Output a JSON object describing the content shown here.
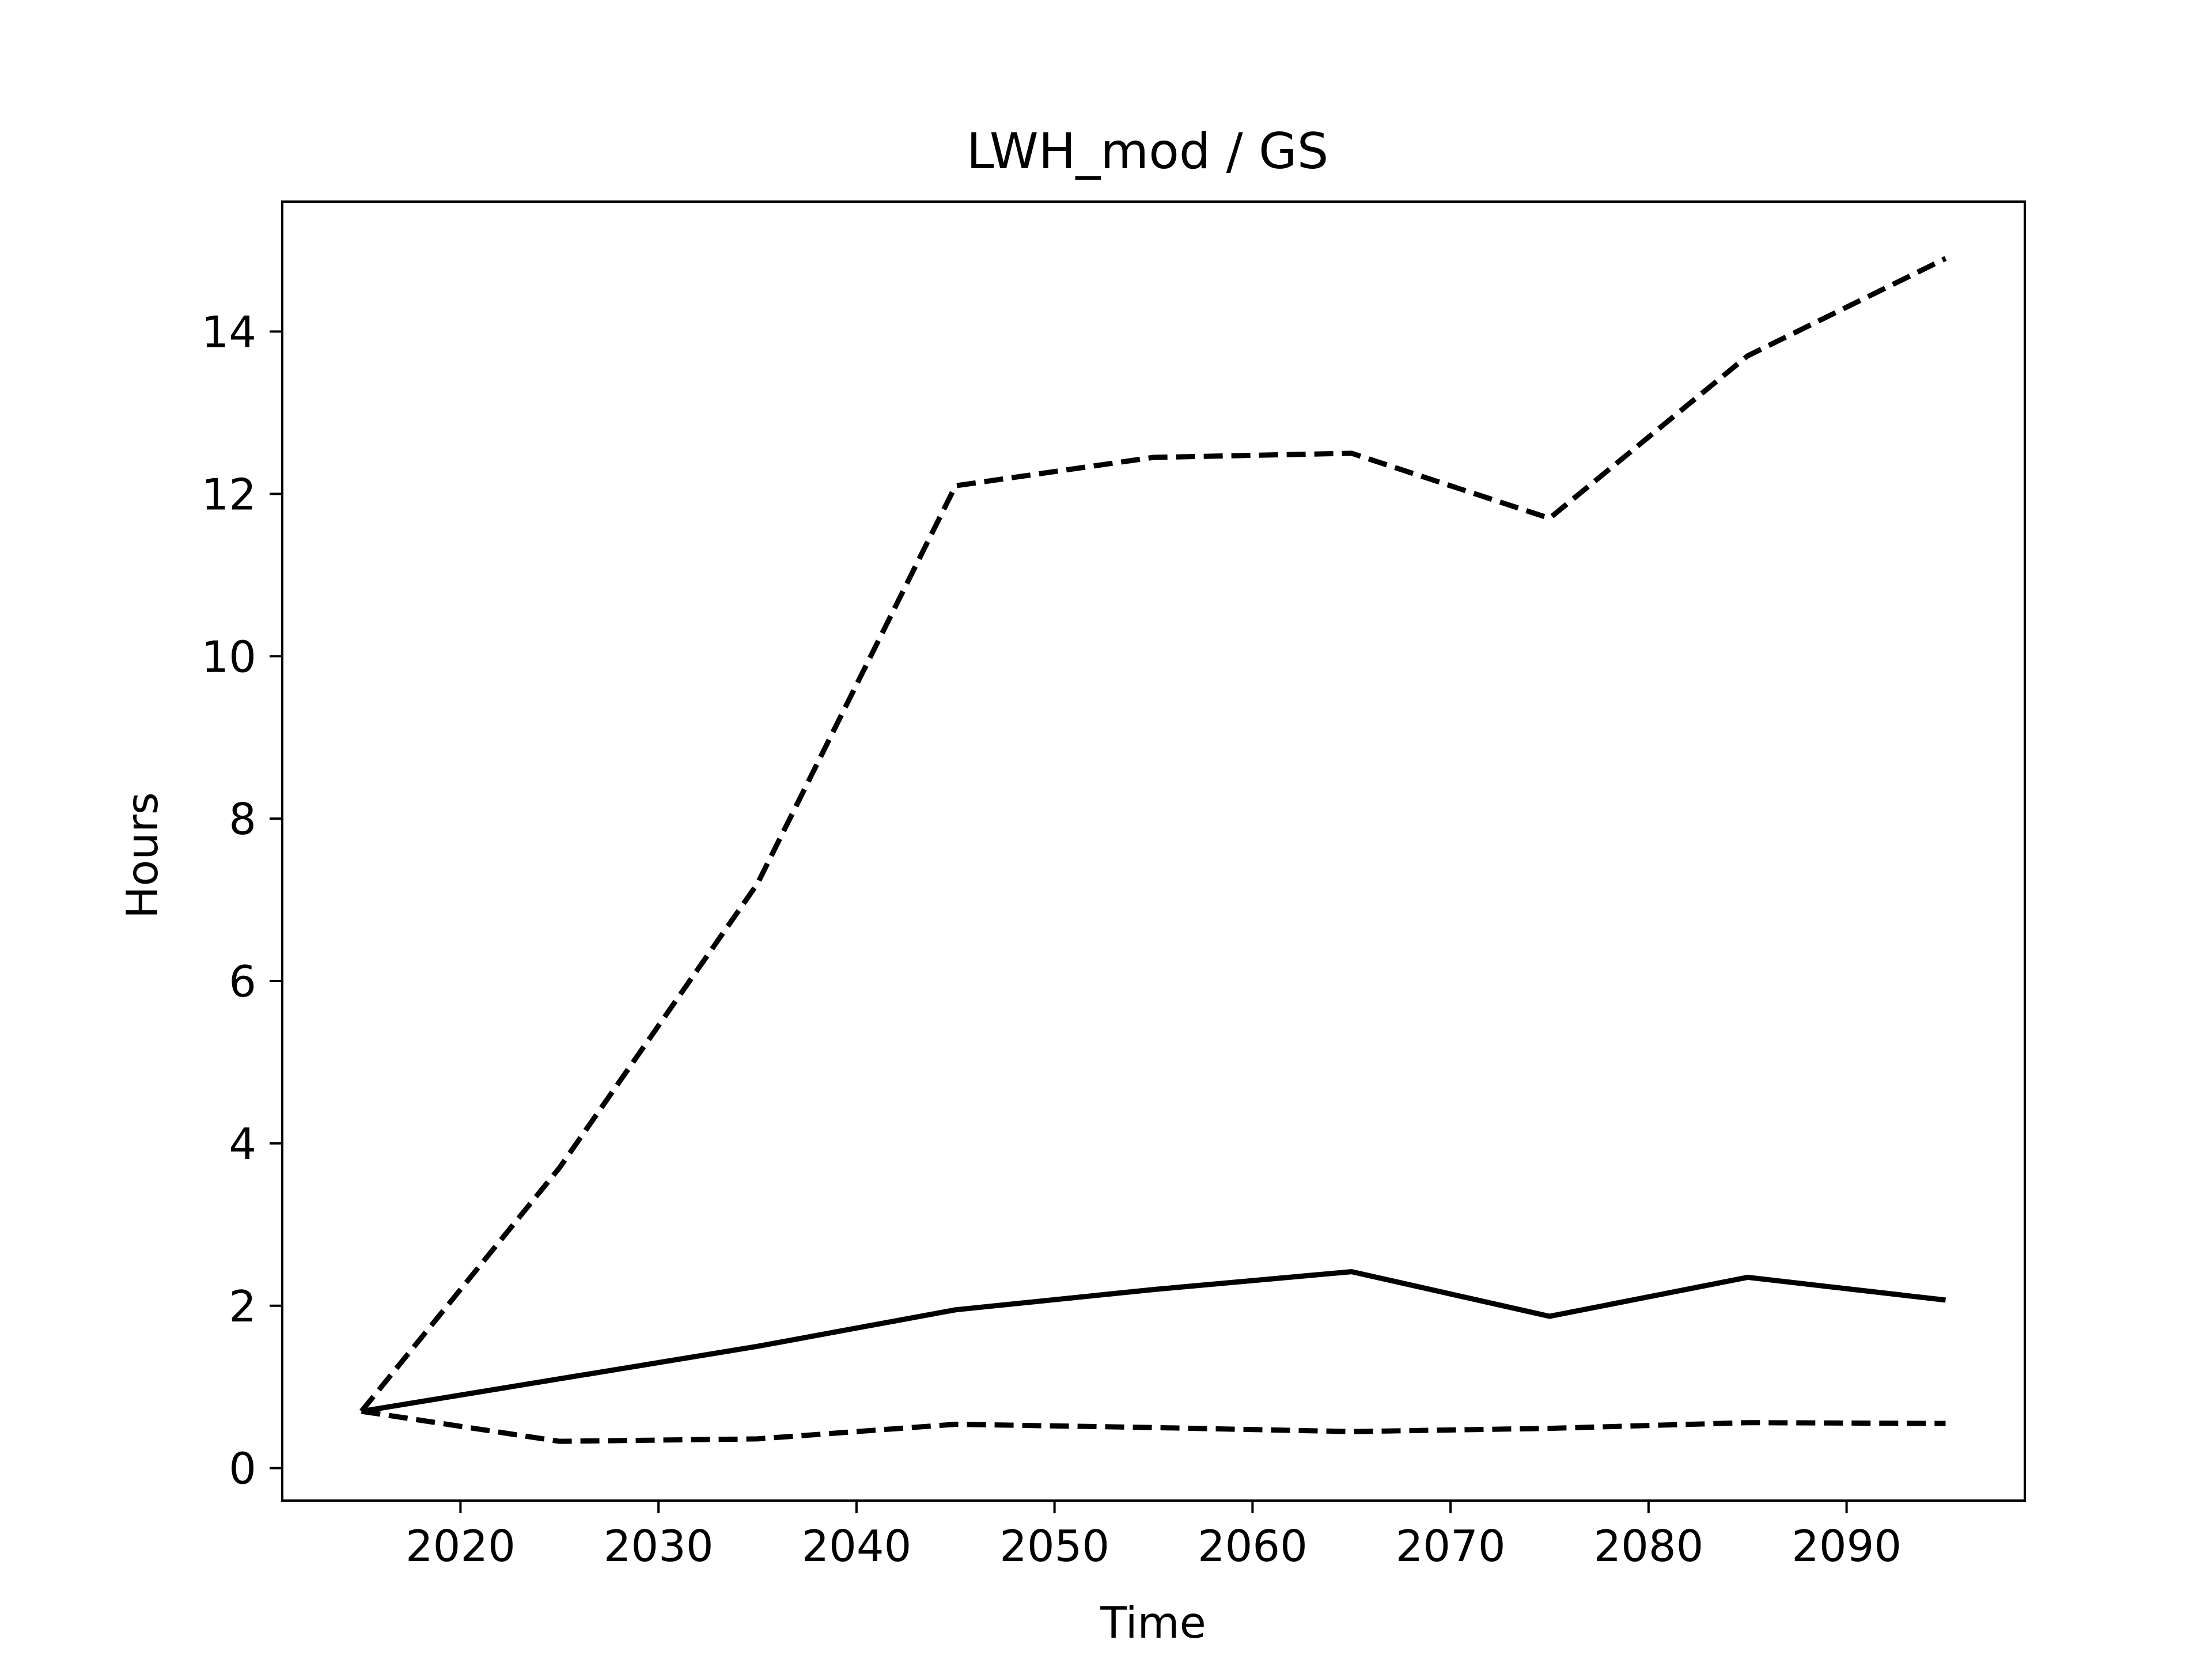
{
  "chart_data": {
    "type": "line",
    "title": "LWH_mod / GS",
    "xlabel": "Time",
    "ylabel": "Hours",
    "xlim": [
      2011,
      2099
    ],
    "ylim": [
      -0.4,
      15.6
    ],
    "xticks": [
      2020,
      2030,
      2040,
      2050,
      2060,
      2070,
      2080,
      2090
    ],
    "yticks": [
      0,
      2,
      4,
      6,
      8,
      10,
      12,
      14
    ],
    "grid": false,
    "x": [
      2015,
      2025,
      2035,
      2045,
      2055,
      2065,
      2075,
      2085,
      2095
    ],
    "series": [
      {
        "style": "dashed",
        "color": "#000000",
        "values": [
          0.7,
          3.7,
          7.2,
          12.1,
          12.45,
          12.5,
          11.7,
          13.7,
          14.9
        ]
      },
      {
        "style": "solid",
        "color": "#000000",
        "values": [
          0.7,
          1.1,
          1.5,
          1.95,
          2.2,
          2.42,
          1.87,
          2.35,
          2.07
        ]
      },
      {
        "style": "dashed",
        "color": "#000000",
        "values": [
          0.7,
          0.33,
          0.36,
          0.54,
          0.5,
          0.45,
          0.49,
          0.56,
          0.55
        ]
      }
    ]
  }
}
